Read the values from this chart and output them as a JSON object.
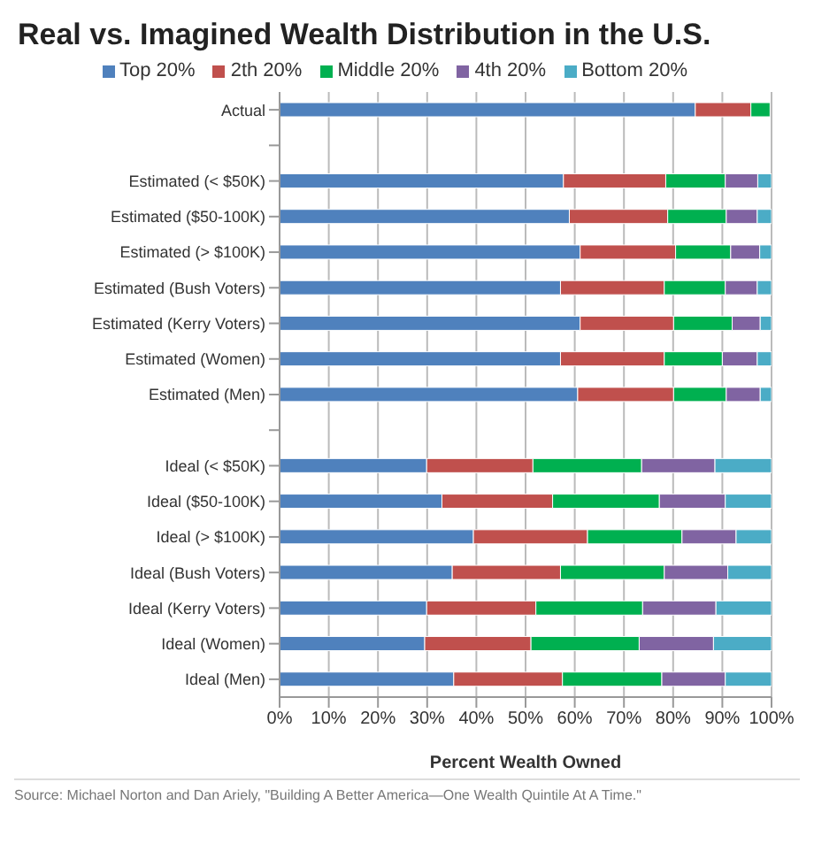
{
  "chart_data": {
    "type": "bar",
    "orientation": "horizontal",
    "stacked": true,
    "title": "Real vs. Imagined Wealth Distribution in the U.S.",
    "xlabel": "Percent Wealth Owned",
    "annotations": [
      "Source: Michael Norton and Dan Ariely, \"Building A Better America—One Wealth Quintile At A Time.\""
    ],
    "categories": [
      "Actual",
      null,
      "Estimated (< $50K)",
      "Estimated ($50-100K)",
      "Estimated (> $100K)",
      "Estimated (Bush Voters)",
      "Estimated (Kerry Voters)",
      "Estimated (Women)",
      "Estimated (Men)",
      null,
      "Ideal (< $50K)",
      "Ideal ($50-100K)",
      "Ideal (> $100K)",
      "Ideal (Bush Voters)",
      "Ideal (Kerry Voters)",
      "Ideal (Women)",
      "Ideal (Men)"
    ],
    "series": [
      {
        "name": "Top 20%",
        "color": "#4f81bd",
        "values": [
          84.5,
          null,
          57.7,
          58.9,
          61.1,
          57.1,
          61.1,
          57.1,
          60.6,
          null,
          29.9,
          33,
          39.4,
          35.1,
          29.9,
          29.5,
          35.4
        ]
      },
      {
        "name": "2th 20%",
        "color": "#c0504d",
        "values": [
          11.3,
          null,
          20.8,
          20,
          19.4,
          21.1,
          19,
          21.1,
          19.5,
          null,
          21.6,
          22.5,
          23.2,
          22,
          22.2,
          21.6,
          22.1
        ]
      },
      {
        "name": "Middle 20%",
        "color": "#00b050",
        "values": [
          3.9,
          null,
          12.1,
          11.9,
          11.2,
          12.4,
          11.9,
          11.8,
          10.7,
          null,
          22.1,
          21.7,
          19.2,
          21.1,
          21.7,
          22,
          20.2
        ]
      },
      {
        "name": "4th 20%",
        "color": "#8064a2",
        "values": [
          null,
          null,
          6.6,
          6.3,
          5.9,
          6.5,
          5.7,
          7.1,
          6.9,
          null,
          14.9,
          13.4,
          11,
          12.9,
          14.9,
          15.1,
          12.9
        ]
      },
      {
        "name": "Bottom 20%",
        "color": "#4bacc6",
        "values": [
          null,
          null,
          2.8,
          2.9,
          2.4,
          2.9,
          2.3,
          2.9,
          2.3,
          null,
          11.5,
          9.4,
          7.2,
          8.9,
          11.3,
          11.8,
          9.4
        ]
      }
    ],
    "xlim": [
      0,
      100
    ],
    "xticks": [
      {
        "value": 0,
        "label": "0%"
      },
      {
        "value": 10,
        "label": "10%"
      },
      {
        "value": 20,
        "label": "20%"
      },
      {
        "value": 30,
        "label": "30%"
      },
      {
        "value": 40,
        "label": "40%"
      },
      {
        "value": 50,
        "label": "50%"
      },
      {
        "value": 60,
        "label": "60%"
      },
      {
        "value": 70,
        "label": "70%"
      },
      {
        "value": 80,
        "label": "80%"
      },
      {
        "value": 90,
        "label": "90%"
      },
      {
        "value": 100,
        "label": "100%"
      }
    ],
    "grid": "x",
    "legend": "top"
  }
}
